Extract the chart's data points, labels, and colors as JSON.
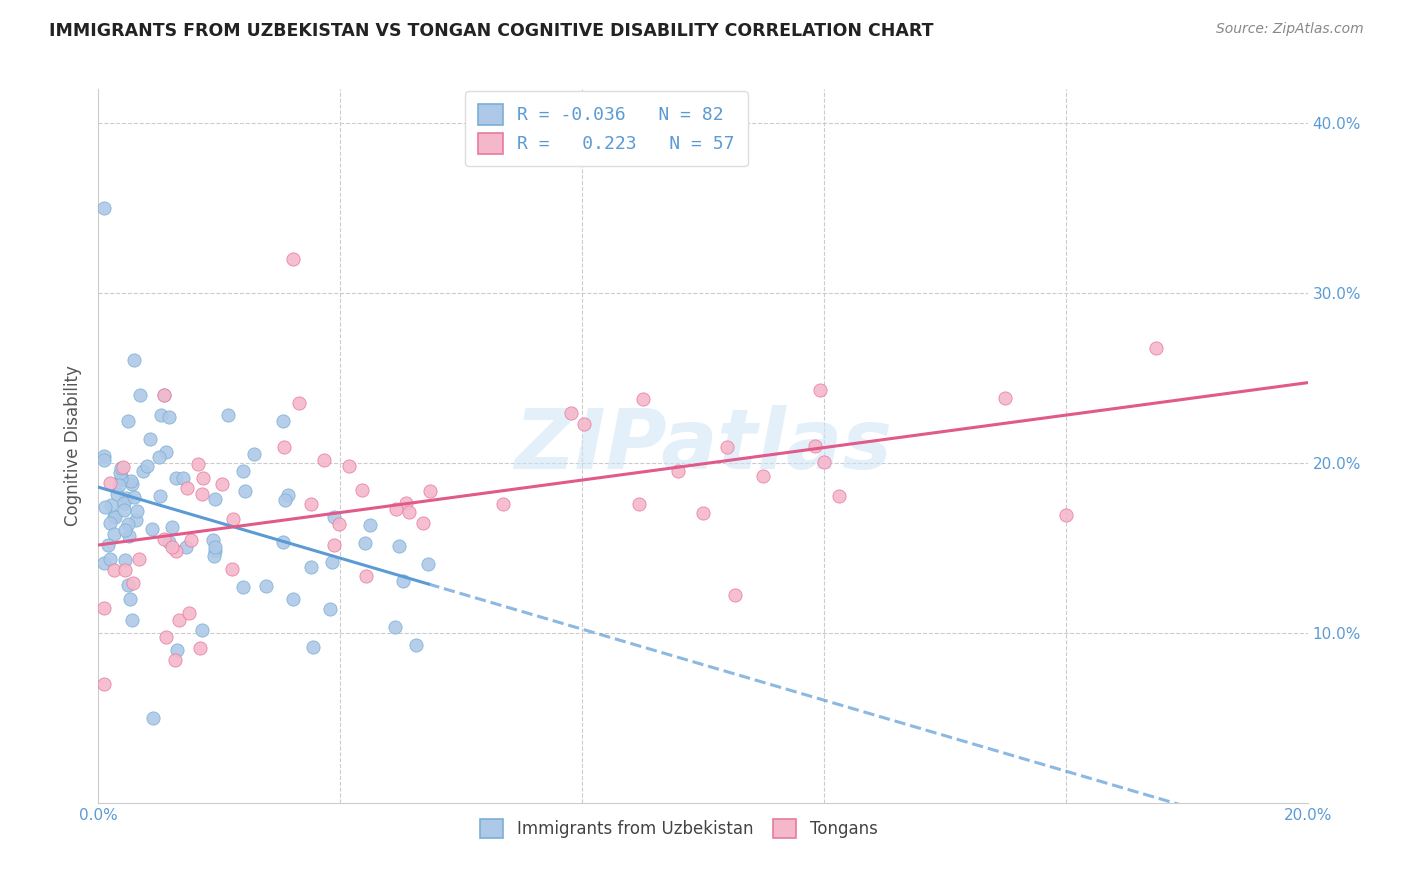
{
  "title": "IMMIGRANTS FROM UZBEKISTAN VS TONGAN COGNITIVE DISABILITY CORRELATION CHART",
  "source": "Source: ZipAtlas.com",
  "ylabel": "Cognitive Disability",
  "xlim": [
    0.0,
    0.2
  ],
  "ylim": [
    0.0,
    0.42
  ],
  "ytick_vals": [
    0.0,
    0.1,
    0.2,
    0.3,
    0.4
  ],
  "xtick_vals": [
    0.0,
    0.04,
    0.08,
    0.12,
    0.16,
    0.2
  ],
  "series1_face_color": "#aec9e8",
  "series1_edge_color": "#7bafd4",
  "series2_face_color": "#f5b8cb",
  "series2_edge_color": "#e87aa0",
  "series1_trend_color": "#5b9bd5",
  "series2_trend_color": "#e05a8a",
  "legend_R1": "-0.036",
  "legend_N1": "82",
  "legend_R2": "0.223",
  "legend_N2": "57",
  "legend_label1": "Immigrants from Uzbekistan",
  "legend_label2": "Tongans",
  "watermark": "ZIPatlas",
  "background_color": "#ffffff",
  "grid_color": "#cccccc",
  "right_tick_color": "#5b9bd5",
  "title_color": "#222222",
  "source_color": "#888888",
  "ylabel_color": "#555555"
}
